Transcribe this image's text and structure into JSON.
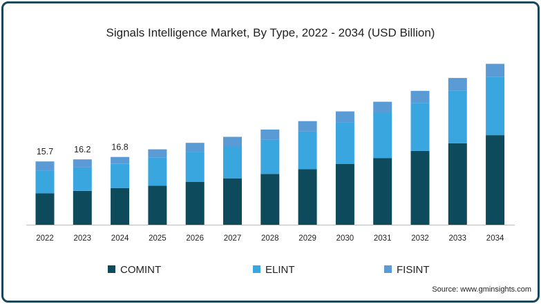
{
  "chart_data": {
    "type": "bar",
    "stacked": true,
    "title": "Signals Intelligence Market, By Type, 2022 - 2034 (USD Billion)",
    "categories": [
      "2022",
      "2023",
      "2024",
      "2025",
      "2026",
      "2027",
      "2028",
      "2029",
      "2030",
      "2031",
      "2032",
      "2033",
      "2034"
    ],
    "series": [
      {
        "name": "COMINT",
        "color": "#0d4a5c",
        "values": [
          7.8,
          8.4,
          9.1,
          9.7,
          10.6,
          11.5,
          12.6,
          13.8,
          15.1,
          16.5,
          18.3,
          20.2,
          22.2
        ]
      },
      {
        "name": "ELINT",
        "color": "#3aa6e0",
        "values": [
          5.6,
          5.8,
          6.0,
          7.0,
          7.5,
          7.9,
          8.5,
          9.3,
          10.3,
          11.2,
          11.9,
          13.1,
          14.5
        ]
      },
      {
        "name": "FISINT",
        "color": "#5b9bd5",
        "values": [
          2.3,
          2.0,
          1.7,
          2.0,
          2.2,
          2.4,
          2.5,
          2.6,
          2.7,
          2.8,
          3.0,
          3.1,
          3.2
        ]
      }
    ],
    "data_labels": [
      {
        "category": "2022",
        "text": "15.7"
      },
      {
        "category": "2023",
        "text": "16.2"
      },
      {
        "category": "2024",
        "text": "16.8"
      }
    ],
    "ylim": [
      0,
      40
    ],
    "grid": false,
    "legend": "bottom",
    "xlabel": "",
    "ylabel": ""
  },
  "source": "Source: www.gminsights.com"
}
